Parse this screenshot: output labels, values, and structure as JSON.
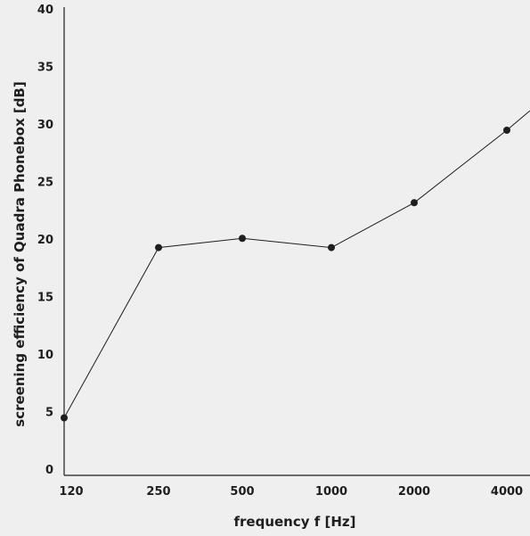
{
  "chart_data": {
    "type": "line",
    "title": "",
    "xlabel": "frequency f [Hz]",
    "ylabel": "screening efficiency of Quadra Phonebox [dB]",
    "categories": [
      "120",
      "250",
      "500",
      "1000",
      "2000",
      "4000"
    ],
    "yticks": [
      "0",
      "5",
      "10",
      "15",
      "20",
      "25",
      "30",
      "35",
      "40"
    ],
    "ylim": [
      0,
      40
    ],
    "grid": false,
    "series": [
      {
        "values": [
          5,
          19.8,
          20.6,
          19.8,
          23.7,
          30
        ],
        "color": "#1e1e1e"
      }
    ],
    "trailing_segment_end": 31.7
  }
}
